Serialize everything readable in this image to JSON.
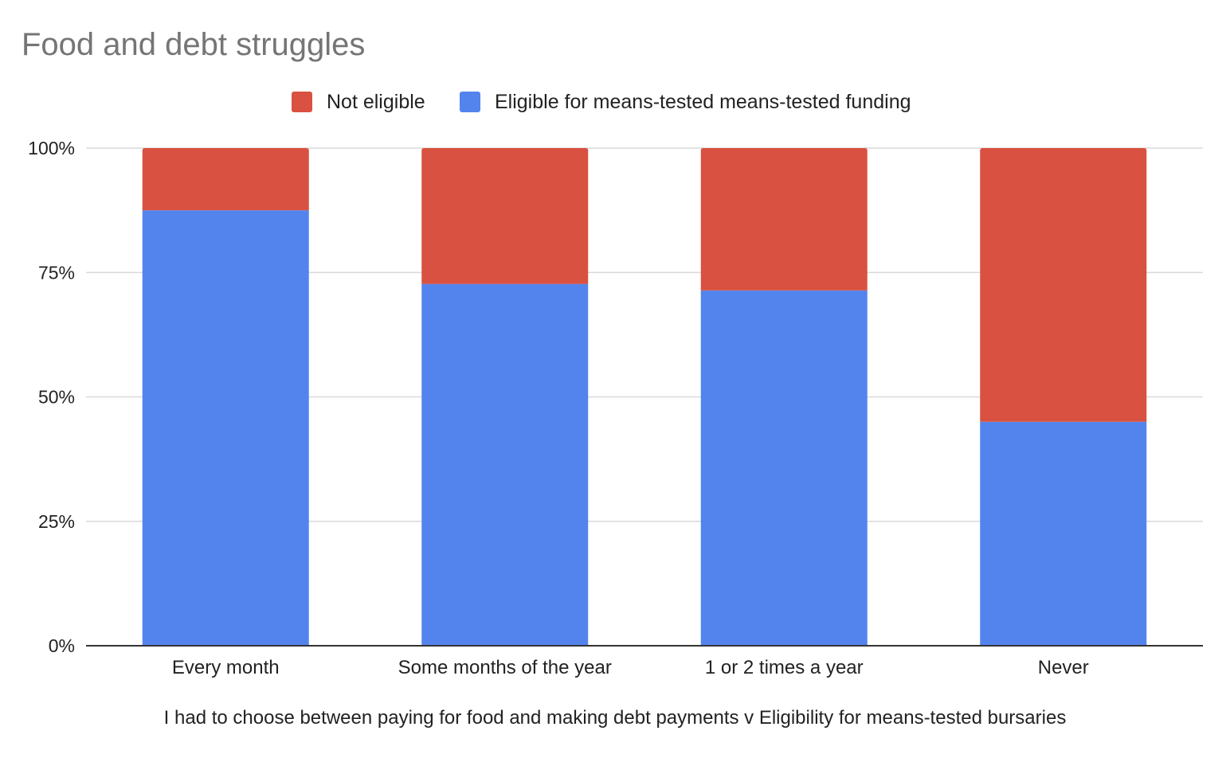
{
  "chart_data": {
    "type": "bar",
    "stacked": true,
    "stack_mode": "percent",
    "title": "Food and debt struggles",
    "xlabel": "I had to choose between paying for food and making debt payments v Eligibility for means-tested bursaries",
    "ylabel": "",
    "categories": [
      "Every month",
      "Some months of the year",
      "1 or 2 times a year",
      "Never"
    ],
    "series": [
      {
        "name": "Eligible for means-tested means-tested funding",
        "values": [
          87.5,
          72.7,
          71.4,
          45
        ],
        "color": "#5384ed"
      },
      {
        "name": "Not eligible",
        "values": [
          12.5,
          27.3,
          28.6,
          55
        ],
        "color": "#d95140"
      }
    ],
    "legend_order": [
      "Not eligible",
      "Eligible for means-tested means-tested funding"
    ],
    "yticks": [
      "0%",
      "25%",
      "50%",
      "75%",
      "100%"
    ],
    "ylim": [
      0,
      100
    ],
    "grid": true,
    "legend_position": "top"
  }
}
